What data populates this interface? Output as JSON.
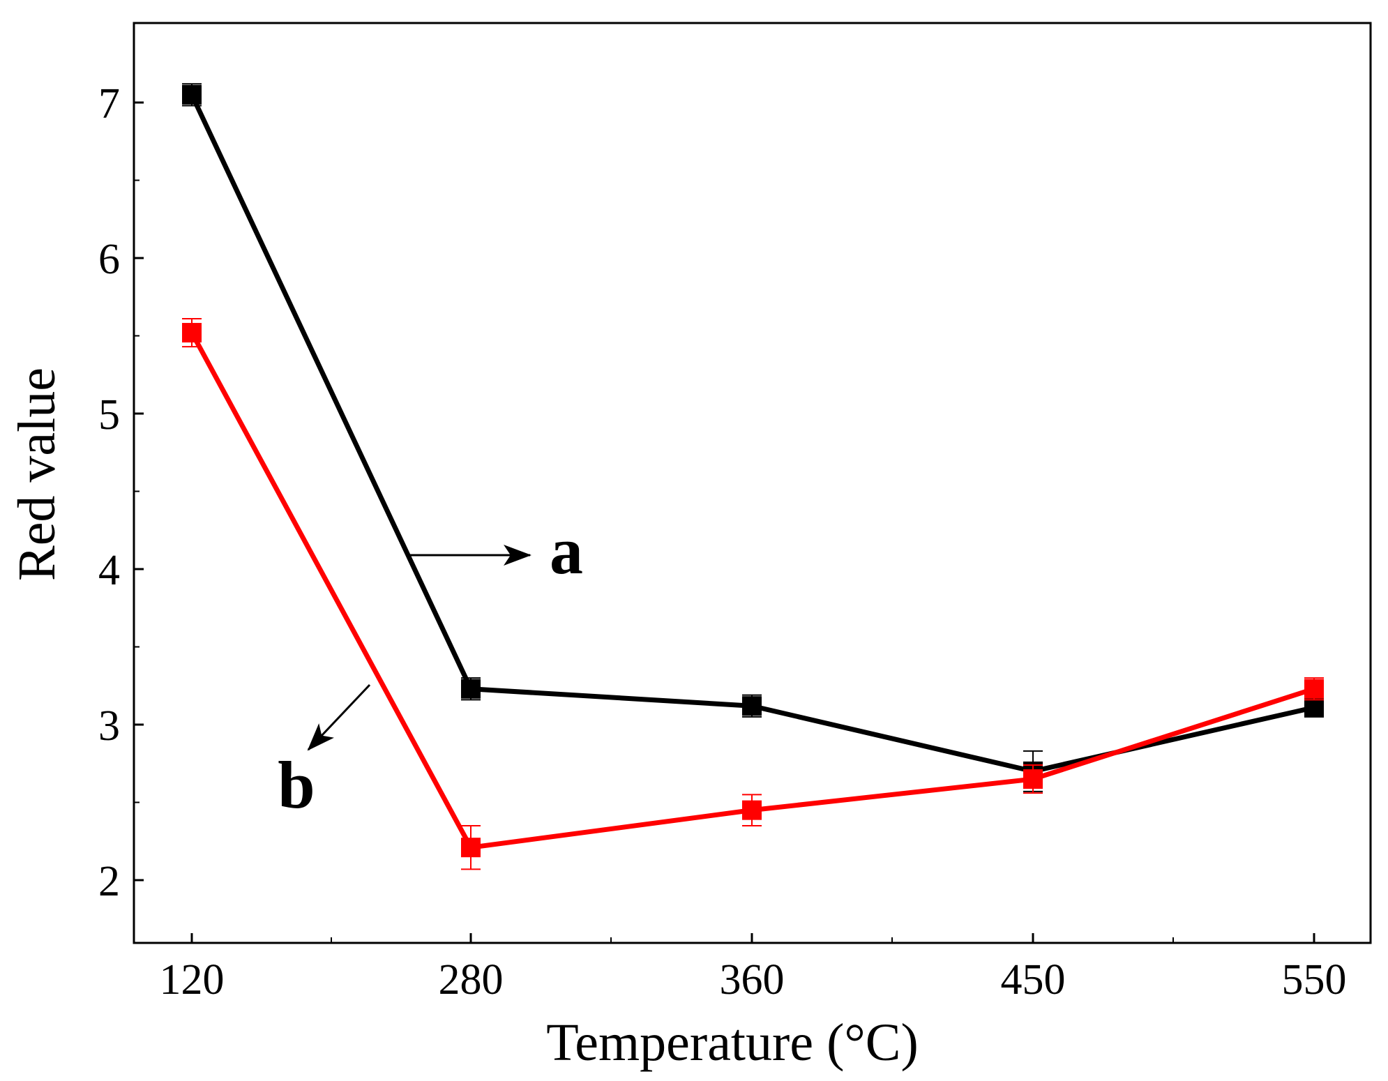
{
  "chart_data": {
    "type": "line",
    "title": "",
    "xlabel": "Temperature (°C)",
    "ylabel": "Red value",
    "categories": [
      "120",
      "280",
      "360",
      "450",
      "550"
    ],
    "ylim": [
      1.6,
      7.5
    ],
    "yticks": [
      2,
      3,
      4,
      5,
      6,
      7
    ],
    "grid": false,
    "legend": "none",
    "series": [
      {
        "name": "a",
        "color": "#000000",
        "values": [
          7.05,
          3.23,
          3.12,
          2.7,
          3.11
        ],
        "errors": [
          0.07,
          0.07,
          0.07,
          0.13,
          0.06
        ]
      },
      {
        "name": "b",
        "color": "#ff0000",
        "values": [
          5.52,
          2.21,
          2.45,
          2.65,
          3.23
        ],
        "errors": [
          0.09,
          0.14,
          0.1,
          0.09,
          0.07
        ]
      }
    ],
    "annotations": [
      {
        "text": "a",
        "series": "a"
      },
      {
        "text": "b",
        "series": "b"
      }
    ]
  }
}
